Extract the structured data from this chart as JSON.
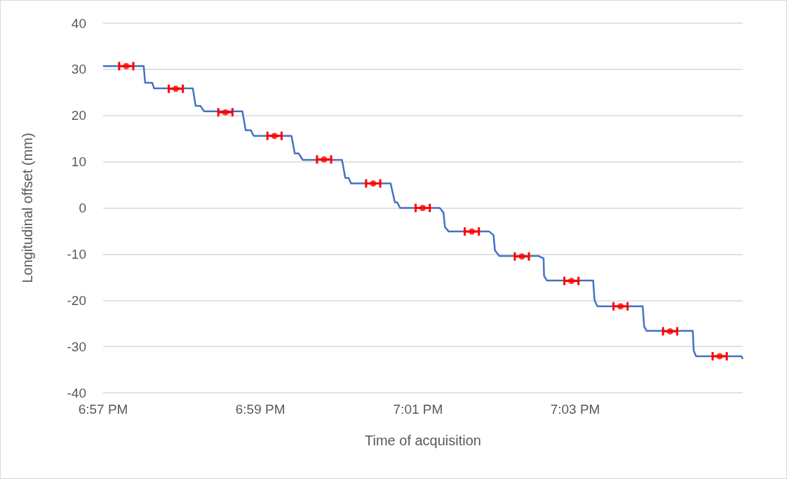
{
  "chart_data": {
    "type": "line",
    "xlabel": "Time of acquisition",
    "ylabel": "Longitudinal offset (mm)",
    "xlim": [
      18.95,
      19.0855
    ],
    "ylim": [
      -40,
      40
    ],
    "xticks": [
      {
        "value": 18.95,
        "label": "6:57 PM"
      },
      {
        "value": 18.9833,
        "label": "6:59 PM"
      },
      {
        "value": 19.0167,
        "label": "7:01 PM"
      },
      {
        "value": 19.05,
        "label": "7:03 PM"
      }
    ],
    "yticks": [
      -40,
      -30,
      -20,
      -10,
      0,
      10,
      20,
      30,
      40
    ],
    "grid": "y",
    "series": [
      {
        "color": "#4472c4",
        "marker": "none",
        "line_style": "solid",
        "x": [
          18.95,
          18.9586,
          18.9589,
          18.9604,
          18.9608,
          18.969,
          18.9696,
          18.9706,
          18.9714,
          18.9795,
          18.9802,
          18.9813,
          18.9819,
          18.9899,
          18.9906,
          18.9914,
          18.9923,
          19.0006,
          19.0013,
          19.002,
          19.0025,
          19.0109,
          19.0118,
          19.0123,
          19.0129,
          19.0213,
          19.0221,
          19.0224,
          19.0232,
          19.0318,
          19.0327,
          19.033,
          19.0339,
          19.0422,
          19.0433,
          19.0434,
          19.044,
          19.0538,
          19.0541,
          19.0547,
          19.0643,
          19.0646,
          19.0651,
          19.0749,
          19.0751,
          19.0756,
          19.0852,
          19.0855
        ],
        "values": [
          30.7,
          30.7,
          27.1,
          27.1,
          25.9,
          25.9,
          22.1,
          22.1,
          20.9,
          20.9,
          16.8,
          16.8,
          15.6,
          15.6,
          11.8,
          11.8,
          10.4,
          10.4,
          6.5,
          6.5,
          5.3,
          5.3,
          1.2,
          1.2,
          0,
          0,
          -1.0,
          -4.1,
          -5.1,
          -5.1,
          -5.9,
          -9.2,
          -10.4,
          -10.4,
          -10.9,
          -14.7,
          -15.7,
          -15.7,
          -20.0,
          -21.3,
          -21.3,
          -25.6,
          -26.6,
          -26.6,
          -30.9,
          -32.1,
          -32.1,
          -32.7
        ]
      },
      {
        "type": "scatter",
        "color": "#ff0000",
        "marker": "circle",
        "x": [
          18.9549,
          18.9654,
          18.9759,
          18.9863,
          18.9968,
          19.0072,
          19.0177,
          19.0281,
          19.0387,
          19.0492,
          19.0596,
          19.0701,
          19.0806
        ],
        "values": [
          30.7,
          25.8,
          20.7,
          15.6,
          10.5,
          5.3,
          0.0,
          -5.1,
          -10.5,
          -15.8,
          -21.3,
          -26.7,
          -32.1
        ],
        "xerrors": [
          0.0015,
          0.0015,
          0.0015,
          0.0015,
          0.0015,
          0.0015,
          0.0015,
          0.0015,
          0.0015,
          0.0015,
          0.0015,
          0.0015,
          0.0015
        ]
      }
    ]
  }
}
